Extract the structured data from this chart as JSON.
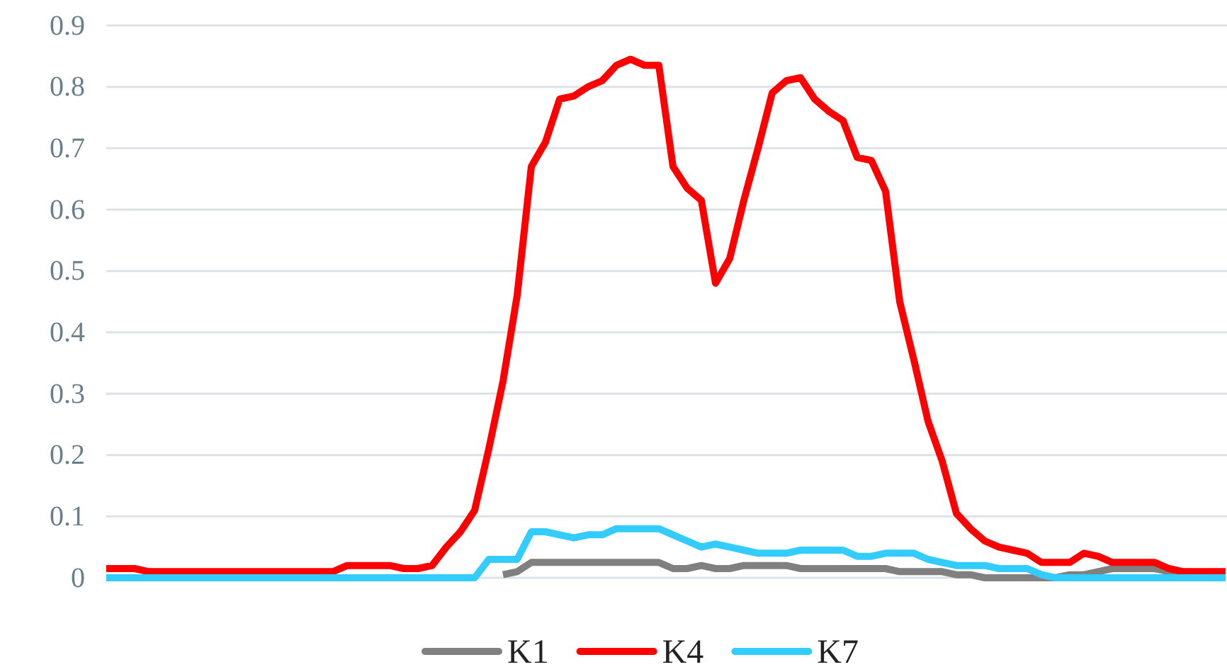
{
  "chart_data": {
    "type": "line",
    "categories": [
      null,
      null,
      null,
      null,
      null,
      null,
      null,
      null,
      null,
      null,
      null,
      null,
      null,
      null,
      null,
      null,
      null,
      null,
      null,
      null,
      null,
      null,
      null,
      null,
      null,
      null,
      null,
      null,
      null,
      null,
      null,
      null,
      null,
      null,
      null,
      null,
      null,
      null,
      null,
      null,
      null,
      null,
      null,
      null,
      null,
      null,
      null,
      null,
      null,
      null,
      null,
      null,
      null,
      null,
      null,
      null,
      null,
      null,
      null,
      null,
      null,
      null,
      null,
      null,
      null,
      null,
      null,
      null,
      null,
      null,
      null,
      null,
      null,
      null,
      null,
      null,
      null,
      null,
      null,
      null
    ],
    "series": [
      {
        "name": "K1",
        "color": "#808080",
        "values": [
          null,
          null,
          null,
          null,
          null,
          null,
          null,
          null,
          null,
          null,
          null,
          null,
          null,
          null,
          null,
          null,
          null,
          null,
          null,
          null,
          null,
          null,
          null,
          null,
          null,
          null,
          null,
          null,
          0.005,
          0.01,
          0.025,
          0.025,
          0.025,
          0.025,
          0.025,
          0.025,
          0.025,
          0.025,
          0.025,
          0.025,
          0.015,
          0.015,
          0.02,
          0.015,
          0.015,
          0.02,
          0.02,
          0.02,
          0.02,
          0.015,
          0.015,
          0.015,
          0.015,
          0.015,
          0.015,
          0.015,
          0.01,
          0.01,
          0.01,
          0.01,
          0.005,
          0.005,
          0,
          0,
          0,
          0,
          0,
          0,
          0.005,
          0.005,
          0.01,
          0.015,
          0.015,
          0.015,
          0.015,
          0.01,
          0.005,
          null,
          null,
          null
        ]
      },
      {
        "name": "K4",
        "color": "#ff0000",
        "values": [
          0.015,
          0.015,
          0.015,
          0.01,
          0.01,
          0.01,
          0.01,
          0.01,
          0.01,
          0.01,
          0.01,
          0.01,
          0.01,
          0.01,
          0.01,
          0.01,
          0.01,
          0.02,
          0.02,
          0.02,
          0.02,
          0.015,
          0.015,
          0.02,
          0.05,
          0.075,
          0.11,
          0.21,
          0.32,
          0.46,
          0.67,
          0.71,
          0.78,
          0.785,
          0.8,
          0.81,
          0.835,
          0.845,
          0.835,
          0.835,
          0.67,
          0.635,
          0.615,
          0.48,
          0.52,
          0.615,
          0.7,
          0.79,
          0.81,
          0.815,
          0.78,
          0.76,
          0.745,
          0.685,
          0.68,
          0.63,
          0.45,
          0.355,
          0.255,
          0.19,
          0.105,
          0.08,
          0.06,
          0.05,
          0.045,
          0.04,
          0.025,
          0.025,
          0.025,
          0.04,
          0.035,
          0.025,
          0.025,
          0.025,
          0.025,
          0.015,
          0.01,
          0.01,
          0.01,
          0.01
        ]
      },
      {
        "name": "K7",
        "color": "#33ccff",
        "values": [
          0,
          0,
          0,
          0,
          0,
          0,
          0,
          0,
          0,
          0,
          0,
          0,
          0,
          0,
          0,
          0,
          0,
          0,
          0,
          0,
          0,
          0,
          0,
          0,
          0,
          0,
          0,
          0.03,
          0.03,
          0.03,
          0.075,
          0.075,
          0.07,
          0.065,
          0.07,
          0.07,
          0.08,
          0.08,
          0.08,
          0.08,
          0.07,
          0.06,
          0.05,
          0.055,
          0.05,
          0.045,
          0.04,
          0.04,
          0.04,
          0.045,
          0.045,
          0.045,
          0.045,
          0.035,
          0.035,
          0.04,
          0.04,
          0.04,
          0.03,
          0.025,
          0.02,
          0.02,
          0.02,
          0.015,
          0.015,
          0.015,
          0.005,
          0,
          0,
          0,
          0,
          0,
          0,
          0,
          0,
          0,
          0,
          0,
          0,
          0
        ]
      }
    ],
    "ylim": [
      0,
      0.9
    ],
    "yticks": [
      0,
      0.1,
      0.2,
      0.3,
      0.4,
      0.5,
      0.6,
      0.7,
      0.8,
      0.9
    ],
    "grid": "y",
    "legend": "bottom",
    "marker": "none",
    "line_style": "solid"
  }
}
